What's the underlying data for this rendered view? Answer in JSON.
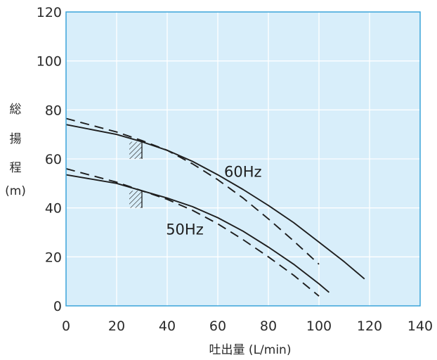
{
  "chart_data": {
    "type": "line",
    "xlabel": "吐出量 (L/min)",
    "ylabel_lines": [
      "総",
      "揚",
      "程",
      "(m)"
    ],
    "xlim": [
      0,
      140
    ],
    "ylim": [
      0,
      120
    ],
    "x_ticks": [
      "0",
      "20",
      "40",
      "60",
      "80",
      "100",
      "120",
      "140"
    ],
    "y_ticks": [
      "0",
      "20",
      "40",
      "60",
      "80",
      "100",
      "120"
    ],
    "grid": true,
    "background_color": "#d8eefa",
    "frame_color": "#3aa4d9",
    "grid_color": "#ffffff",
    "line_color": "#1e1e1e",
    "series": [
      {
        "name": "60Hz",
        "style": "solid",
        "x": [
          0,
          20,
          30,
          40,
          50,
          60,
          70,
          80,
          90,
          100,
          110,
          118
        ],
        "y": [
          74,
          70,
          67,
          63.5,
          59,
          53.5,
          47.5,
          41,
          34,
          26,
          18,
          11
        ]
      },
      {
        "name": "60Hz",
        "style": "dashed",
        "x": [
          0,
          20,
          30,
          40,
          50,
          60,
          70,
          80,
          90,
          100
        ],
        "y": [
          76.5,
          71,
          67.5,
          63.5,
          58,
          51.5,
          44,
          35.5,
          26.5,
          17
        ]
      },
      {
        "name": "50Hz",
        "style": "solid",
        "x": [
          0,
          20,
          30,
          40,
          50,
          60,
          70,
          80,
          90,
          100,
          104
        ],
        "y": [
          53.5,
          50,
          47,
          44,
          40.5,
          36,
          30.5,
          24,
          17,
          9,
          5.5
        ]
      },
      {
        "name": "50Hz",
        "style": "dashed",
        "x": [
          0,
          20,
          30,
          40,
          50,
          60,
          70,
          80,
          90,
          100
        ],
        "y": [
          56,
          50.5,
          47,
          43.5,
          39,
          33.5,
          27,
          20,
          12.5,
          4
        ]
      }
    ],
    "annotations": [
      {
        "text": "60Hz",
        "x": 62.5,
        "y": 55
      },
      {
        "text": "50Hz",
        "x": 39.5,
        "y": 31.5
      }
    ],
    "hatched_regions": [
      {
        "x": [
          25,
          30
        ],
        "y": [
          60,
          67
        ]
      },
      {
        "x": [
          25,
          30
        ],
        "y": [
          40,
          47
        ]
      }
    ]
  }
}
